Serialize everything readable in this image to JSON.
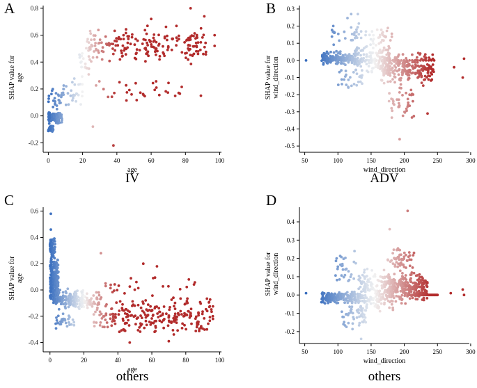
{
  "colors": {
    "low": "#3a6fbf",
    "mid": "#f2f2f2",
    "high": "#b22c2c",
    "axis": "#000000"
  },
  "chart_data": [
    {
      "type": "scatter",
      "letter": "A",
      "caption": "IV",
      "xlabel": "age",
      "ylabel_line1": "SHAP value for",
      "ylabel_line2": "age",
      "xlim": [
        -3,
        101
      ],
      "ylim": [
        -0.25,
        0.82
      ],
      "xticks": [
        0,
        20,
        40,
        60,
        80,
        100
      ],
      "yticks": [
        -0.2,
        0.0,
        0.2,
        0.4,
        0.6,
        0.8
      ],
      "tick_decimals": 1,
      "color_range": [
        0,
        40
      ],
      "seed": 11,
      "clusters": [
        {
          "n": 120,
          "x": [
            0,
            8
          ],
          "y": [
            -0.06,
            0.03
          ]
        },
        {
          "n": 20,
          "x": [
            0,
            3
          ],
          "y": [
            -0.13,
            -0.06
          ]
        },
        {
          "n": 25,
          "x": [
            0,
            10
          ],
          "y": [
            0.03,
            0.22
          ]
        },
        {
          "n": 30,
          "x": [
            8,
            20
          ],
          "y": [
            0.0,
            0.3
          ]
        },
        {
          "n": 20,
          "x": [
            18,
            25
          ],
          "y": [
            0.2,
            0.55
          ]
        },
        {
          "n": 200,
          "x": [
            22,
            92
          ],
          "y": [
            0.38,
            0.68
          ]
        },
        {
          "n": 30,
          "x": [
            25,
            78
          ],
          "y": [
            0.08,
            0.3
          ]
        }
      ],
      "points": [
        {
          "x": 83,
          "y": 0.8
        },
        {
          "x": 91,
          "y": 0.74
        },
        {
          "x": 97,
          "y": 0.6
        },
        {
          "x": 97,
          "y": 0.52
        },
        {
          "x": 38,
          "y": -0.22
        },
        {
          "x": 26,
          "y": -0.08
        },
        {
          "x": 89,
          "y": 0.15
        },
        {
          "x": 60,
          "y": 0.72
        }
      ]
    },
    {
      "type": "scatter",
      "letter": "B",
      "caption": "ADV",
      "xlabel": "wind_direction",
      "ylabel_line1": "SHAP value for",
      "ylabel_line2": "wind_direction",
      "xlim": [
        42,
        298
      ],
      "ylim": [
        -0.52,
        0.32
      ],
      "xticks": [
        50,
        100,
        150,
        200,
        250,
        300
      ],
      "yticks": [
        -0.5,
        -0.4,
        -0.3,
        -0.2,
        -0.1,
        0.0,
        0.1,
        0.2,
        0.3
      ],
      "tick_decimals": 1,
      "color_range": [
        70,
        240
      ],
      "seed": 23,
      "clusters": [
        {
          "n": 150,
          "x": [
            75,
            130
          ],
          "y": [
            -0.03,
            0.06
          ]
        },
        {
          "n": 30,
          "x": [
            90,
            135
          ],
          "y": [
            0.06,
            0.27
          ]
        },
        {
          "n": 30,
          "x": [
            100,
            140
          ],
          "y": [
            -0.2,
            -0.03
          ]
        },
        {
          "n": 130,
          "x": [
            125,
            180
          ],
          "y": [
            -0.08,
            0.1
          ]
        },
        {
          "n": 30,
          "x": [
            140,
            185
          ],
          "y": [
            0.08,
            0.2
          ]
        },
        {
          "n": 220,
          "x": [
            165,
            245
          ],
          "y": [
            -0.15,
            0.05
          ]
        },
        {
          "n": 40,
          "x": [
            175,
            215
          ],
          "y": [
            -0.38,
            -0.12
          ]
        }
      ],
      "line": {
        "x": [
          80,
          245
        ],
        "y": 0.0
      },
      "points": [
        {
          "x": 52,
          "y": 0.0
        },
        {
          "x": 120,
          "y": 0.27
        },
        {
          "x": 130,
          "y": 0.27
        },
        {
          "x": 193,
          "y": -0.46
        },
        {
          "x": 235,
          "y": -0.31
        },
        {
          "x": 288,
          "y": -0.1
        },
        {
          "x": 290,
          "y": 0.01
        },
        {
          "x": 275,
          "y": -0.04
        }
      ]
    },
    {
      "type": "scatter",
      "letter": "C",
      "caption": "others",
      "xlabel": "age",
      "ylabel_line1": "SHAP value for",
      "ylabel_line2": "age",
      "xlim": [
        -4,
        101
      ],
      "ylim": [
        -0.45,
        0.63
      ],
      "xticks": [
        0,
        20,
        40,
        60,
        80,
        100
      ],
      "yticks": [
        -0.4,
        -0.2,
        0.0,
        0.2,
        0.4,
        0.6
      ],
      "tick_decimals": 1,
      "color_range": [
        0,
        40
      ],
      "seed": 37,
      "clusters": [
        {
          "n": 250,
          "x": [
            0,
            5
          ],
          "y": [
            -0.12,
            0.25
          ]
        },
        {
          "n": 60,
          "x": [
            0,
            3
          ],
          "y": [
            0.2,
            0.42
          ]
        },
        {
          "n": 150,
          "x": [
            2,
            20
          ],
          "y": [
            -0.15,
            0.02
          ]
        },
        {
          "n": 30,
          "x": [
            3,
            15
          ],
          "y": [
            -0.3,
            -0.15
          ]
        },
        {
          "n": 40,
          "x": [
            18,
            30
          ],
          "y": [
            -0.15,
            0.0
          ]
        },
        {
          "n": 250,
          "x": [
            25,
            96
          ],
          "y": [
            -0.35,
            -0.04
          ]
        },
        {
          "n": 25,
          "x": [
            30,
            90
          ],
          "y": [
            -0.05,
            0.1
          ]
        }
      ],
      "points": [
        {
          "x": 0.5,
          "y": 0.58
        },
        {
          "x": 0.5,
          "y": 0.46
        },
        {
          "x": 30,
          "y": 0.28
        },
        {
          "x": 55,
          "y": 0.2
        },
        {
          "x": 63,
          "y": 0.18
        },
        {
          "x": 47,
          "y": -0.4
        },
        {
          "x": 70,
          "y": -0.39
        },
        {
          "x": 96,
          "y": -0.22
        }
      ]
    },
    {
      "type": "scatter",
      "letter": "D",
      "caption": "others",
      "xlabel": "wind_direction",
      "ylabel_line1": "SHAP value for",
      "ylabel_line2": "wind_direction",
      "xlim": [
        42,
        298
      ],
      "ylim": [
        -0.25,
        0.48
      ],
      "xticks": [
        50,
        100,
        150,
        200,
        250,
        300
      ],
      "yticks": [
        -0.2,
        -0.1,
        0.0,
        0.1,
        0.2,
        0.3,
        0.4
      ],
      "tick_decimals": 1,
      "color_range": [
        70,
        240
      ],
      "seed": 51,
      "clusters": [
        {
          "n": 180,
          "x": [
            75,
            135
          ],
          "y": [
            -0.05,
            0.02
          ]
        },
        {
          "n": 30,
          "x": [
            95,
            130
          ],
          "y": [
            0.03,
            0.24
          ]
        },
        {
          "n": 50,
          "x": [
            105,
            145
          ],
          "y": [
            -0.2,
            -0.05
          ]
        },
        {
          "n": 200,
          "x": [
            130,
            185
          ],
          "y": [
            -0.1,
            0.15
          ]
        },
        {
          "n": 250,
          "x": [
            170,
            235
          ],
          "y": [
            -0.05,
            0.12
          ]
        },
        {
          "n": 60,
          "x": [
            175,
            215
          ],
          "y": [
            0.1,
            0.27
          ]
        }
      ],
      "line": {
        "x": [
          205,
          250
        ],
        "y": 0.0
      },
      "points": [
        {
          "x": 52,
          "y": 0.01
        },
        {
          "x": 205,
          "y": 0.46
        },
        {
          "x": 178,
          "y": 0.36
        },
        {
          "x": 288,
          "y": 0.03
        },
        {
          "x": 290,
          "y": 0.0
        },
        {
          "x": 270,
          "y": 0.01
        },
        {
          "x": 125,
          "y": 0.24
        },
        {
          "x": 135,
          "y": -0.24
        }
      ]
    }
  ]
}
